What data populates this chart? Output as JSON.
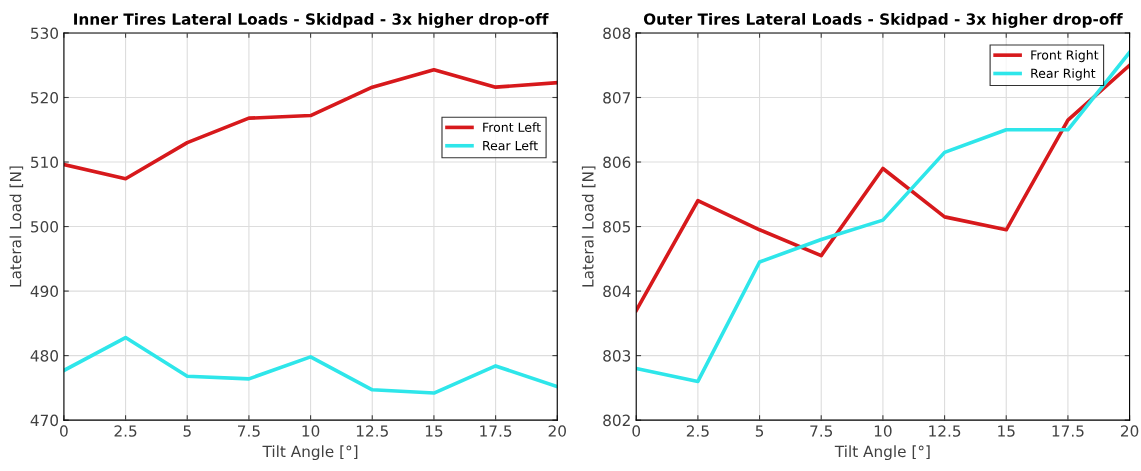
{
  "chart_data": [
    {
      "type": "line",
      "title": "Inner Tires Lateral Loads - Skidpad - 3x higher drop-off",
      "xlabel": "Tilt Angle [°]",
      "ylabel": "Lateral Load [N]",
      "x": [
        0,
        2.5,
        5,
        7.5,
        10,
        12.5,
        15,
        17.5,
        20
      ],
      "series": [
        {
          "name": "Front Left",
          "color": "#d7191c",
          "values": [
            509.6,
            507.4,
            513.0,
            516.8,
            517.2,
            521.6,
            524.3,
            521.6,
            522.3
          ]
        },
        {
          "name": "Rear Left",
          "color": "#2ee6ea",
          "values": [
            477.7,
            482.8,
            476.8,
            476.4,
            479.8,
            474.7,
            474.2,
            478.4,
            475.2
          ]
        }
      ],
      "xlim": [
        0,
        20
      ],
      "xticks": [
        0,
        2.5,
        5,
        7.5,
        10,
        12.5,
        15,
        17.5,
        20
      ],
      "ylim": [
        470,
        530
      ],
      "yticks": [
        470,
        480,
        490,
        500,
        510,
        520,
        530
      ],
      "grid": true,
      "legend": "right"
    },
    {
      "type": "line",
      "title": "Outer Tires Lateral Loads - Skidpad - 3x higher drop-off",
      "xlabel": "Tilt Angle [°]",
      "ylabel": "Lateral Load [N]",
      "x": [
        0,
        2.5,
        5,
        7.5,
        10,
        12.5,
        15,
        17.5,
        20
      ],
      "series": [
        {
          "name": "Front Right",
          "color": "#d7191c",
          "values": [
            803.7,
            805.4,
            804.95,
            804.55,
            805.9,
            805.15,
            804.95,
            806.65,
            807.5
          ]
        },
        {
          "name": "Rear Right",
          "color": "#2ee6ea",
          "values": [
            802.8,
            802.6,
            804.45,
            804.8,
            805.1,
            806.15,
            806.5,
            806.5,
            807.7
          ]
        }
      ],
      "xlim": [
        0,
        20
      ],
      "xticks": [
        0,
        2.5,
        5,
        7.5,
        10,
        12.5,
        15,
        17.5,
        20
      ],
      "ylim": [
        802,
        808
      ],
      "yticks": [
        802,
        803,
        804,
        805,
        806,
        807,
        808
      ],
      "grid": true,
      "legend": "top right"
    }
  ]
}
